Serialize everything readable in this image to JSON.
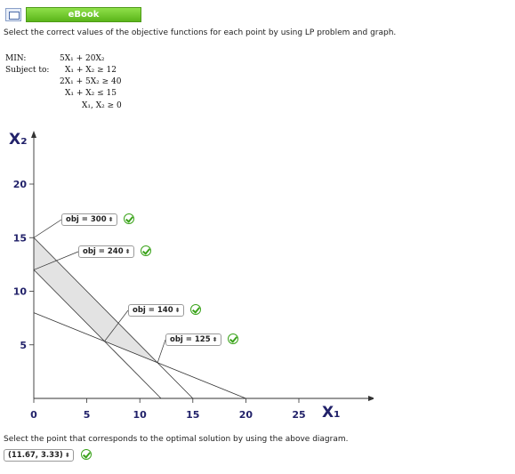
{
  "header": {
    "button_label": "eBook",
    "icon": "book-icon"
  },
  "instruction": "Select the correct values of the objective functions for each point by using LP problem and graph.",
  "lp": {
    "min_label": "MIN:",
    "subject_label": "Subject to:",
    "objective": "5X₁ + 20X₂",
    "constraints": [
      "X₁ +   X₂ ≥ 12",
      "2X₁ +  5X₂ ≥ 40",
      "X₁ +   X₂ ≤ 15",
      "X₁, X₂ ≥ 0"
    ]
  },
  "chart_data": {
    "type": "line",
    "xlabel": "X₁",
    "ylabel": "X₂",
    "xlim": [
      0,
      25
    ],
    "ylim": [
      0,
      20
    ],
    "x_ticks": [
      "0",
      "5",
      "10",
      "15",
      "20",
      "25"
    ],
    "y_ticks": [
      "5",
      "10",
      "15",
      "20"
    ],
    "constraint_lines": [
      {
        "points": [
          [
            0,
            12
          ],
          [
            12,
            0
          ]
        ]
      },
      {
        "points": [
          [
            0,
            8
          ],
          [
            20,
            0
          ]
        ]
      },
      {
        "points": [
          [
            0,
            15
          ],
          [
            15,
            0
          ]
        ]
      }
    ],
    "feasible_region": [
      [
        0,
        15
      ],
      [
        0,
        12
      ],
      [
        6.67,
        5.33
      ],
      [
        11.67,
        3.33
      ],
      [
        15,
        0
      ]
    ],
    "corner_points": [
      [
        0,
        15
      ],
      [
        0,
        12
      ],
      [
        6.67,
        5.33
      ],
      [
        11.67,
        3.33
      ]
    ]
  },
  "objective_values": [
    {
      "label": "obj = 300"
    },
    {
      "label": "obj = 240"
    },
    {
      "label": "obj = 140"
    },
    {
      "label": "obj = 125"
    }
  ],
  "spinner_glyph": "⬍",
  "bottom_instruction": "Select the point that corresponds to the optimal solution by using the above diagram.",
  "answer": "(11.67, 3.33)"
}
